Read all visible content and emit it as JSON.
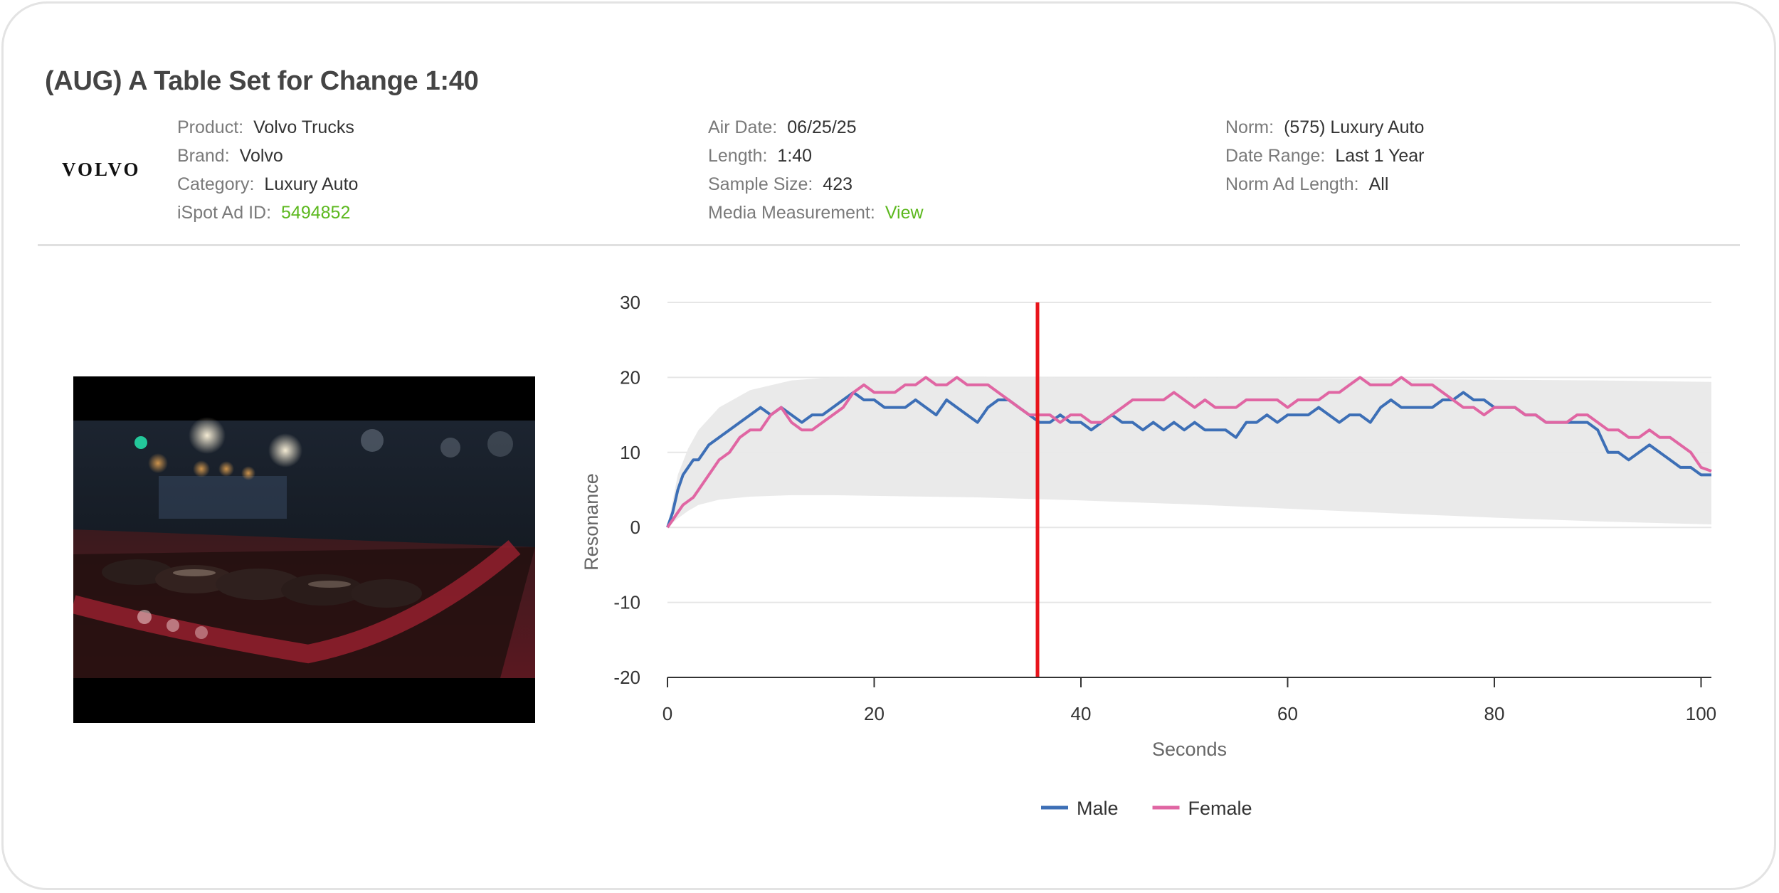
{
  "ad": {
    "title": "(AUG) A Table Set for Change 1:40",
    "brand_logo_text": "VOLVO"
  },
  "details": {
    "left": [
      {
        "label": "Product:",
        "value": "Volvo Trucks"
      },
      {
        "label": "Brand:",
        "value": "Volvo"
      },
      {
        "label": "Category:",
        "value": "Luxury Auto"
      },
      {
        "label": "iSpot Ad ID:",
        "value": "5494852",
        "link": true
      }
    ],
    "middle": [
      {
        "label": "Air Date:",
        "value": "06/25/25"
      },
      {
        "label": "Length:",
        "value": "1:40"
      },
      {
        "label": "Sample Size:",
        "value": "423"
      },
      {
        "label": "Media Measurement:",
        "value": "View",
        "link": true
      }
    ],
    "right": [
      {
        "label": "Norm:",
        "value": "(575) Luxury Auto"
      },
      {
        "label": "Date Range:",
        "value": "Last 1 Year"
      },
      {
        "label": "Norm Ad Length:",
        "value": "All"
      }
    ]
  },
  "colors": {
    "male": "#3d6fb6",
    "female": "#e066a3",
    "marker": "#e8141b",
    "norm_band": "#e9e9e9",
    "link": "#5cb81e"
  },
  "video": {
    "description_icon": "video-thumbnail"
  },
  "chart_data": {
    "type": "line",
    "title": "",
    "xlabel": "Seconds",
    "ylabel": "Resonance",
    "xlim": [
      0,
      101
    ],
    "ylim": [
      -20,
      30
    ],
    "x_ticks": [
      0,
      20,
      40,
      60,
      80,
      100
    ],
    "y_ticks": [
      -20,
      -10,
      0,
      10,
      20,
      30
    ],
    "grid": true,
    "legend_position": "bottom-center",
    "current_time_marker": 35.8,
    "norm_band": {
      "x": [
        0,
        1,
        2,
        3,
        5,
        8,
        12,
        16,
        20,
        30,
        40,
        50,
        60,
        70,
        80,
        90,
        101
      ],
      "upper": [
        0,
        7,
        10.5,
        13,
        16,
        18.3,
        19.6,
        20,
        20.1,
        20.1,
        20,
        20,
        19.9,
        19.8,
        19.7,
        19.6,
        19.4
      ],
      "lower": [
        0,
        1.2,
        2.2,
        3,
        3.7,
        4.1,
        4.3,
        4.3,
        4.2,
        4,
        3.6,
        3.1,
        2.5,
        1.9,
        1.3,
        0.8,
        0.4
      ]
    },
    "series": [
      {
        "name": "Male",
        "x": [
          0,
          0.5,
          1,
          1.5,
          2,
          2.5,
          3,
          4,
          5,
          6,
          7,
          8,
          9,
          10,
          11,
          12,
          13,
          14,
          15,
          16,
          17,
          18,
          19,
          20,
          21,
          22,
          23,
          24,
          25,
          26,
          27,
          28,
          29,
          30,
          31,
          32,
          33,
          34,
          35,
          36,
          37,
          38,
          39,
          40,
          41,
          42,
          43,
          44,
          45,
          46,
          47,
          48,
          49,
          50,
          51,
          52,
          53,
          54,
          55,
          56,
          57,
          58,
          59,
          60,
          61,
          62,
          63,
          64,
          65,
          66,
          67,
          68,
          69,
          70,
          71,
          72,
          73,
          74,
          75,
          76,
          77,
          78,
          79,
          80,
          81,
          82,
          83,
          84,
          85,
          86,
          87,
          88,
          89,
          90,
          91,
          92,
          93,
          94,
          95,
          96,
          97,
          98,
          99,
          100,
          101
        ],
        "values": [
          0,
          2,
          5,
          7,
          8,
          9,
          9,
          11,
          12,
          13,
          14,
          15,
          16,
          15,
          16,
          15,
          14,
          15,
          15,
          16,
          17,
          18,
          17,
          17,
          16,
          16,
          16,
          17,
          16,
          15,
          17,
          16,
          15,
          14,
          16,
          17,
          17,
          16,
          15,
          14,
          14,
          15,
          14,
          14,
          13,
          14,
          15,
          14,
          14,
          13,
          14,
          13,
          14,
          13,
          14,
          13,
          13,
          13,
          12,
          14,
          14,
          15,
          14,
          15,
          15,
          15,
          16,
          15,
          14,
          15,
          15,
          14,
          16,
          17,
          16,
          16,
          16,
          16,
          17,
          17,
          18,
          17,
          17,
          16,
          16,
          16,
          15,
          15,
          14,
          14,
          14,
          14,
          14,
          13,
          10,
          10,
          9,
          10,
          11,
          10,
          9,
          8,
          8,
          7,
          7
        ]
      },
      {
        "name": "Female",
        "x": [
          0,
          0.5,
          1,
          1.5,
          2,
          2.5,
          3,
          4,
          5,
          6,
          7,
          8,
          9,
          10,
          11,
          12,
          13,
          14,
          15,
          16,
          17,
          18,
          19,
          20,
          21,
          22,
          23,
          24,
          25,
          26,
          27,
          28,
          29,
          30,
          31,
          32,
          33,
          34,
          35,
          36,
          37,
          38,
          39,
          40,
          41,
          42,
          43,
          44,
          45,
          46,
          47,
          48,
          49,
          50,
          51,
          52,
          53,
          54,
          55,
          56,
          57,
          58,
          59,
          60,
          61,
          62,
          63,
          64,
          65,
          66,
          67,
          68,
          69,
          70,
          71,
          72,
          73,
          74,
          75,
          76,
          77,
          78,
          79,
          80,
          81,
          82,
          83,
          84,
          85,
          86,
          87,
          88,
          89,
          90,
          91,
          92,
          93,
          94,
          95,
          96,
          97,
          98,
          99,
          100,
          101
        ],
        "values": [
          0,
          1,
          2,
          3,
          3.5,
          4,
          5,
          7,
          9,
          10,
          12,
          13,
          13,
          15,
          16,
          14,
          13,
          13,
          14,
          15,
          16,
          18,
          19,
          18,
          18,
          18,
          19,
          19,
          20,
          19,
          19,
          20,
          19,
          19,
          19,
          18,
          17,
          16,
          15,
          15,
          15,
          14,
          15,
          15,
          14,
          14,
          15,
          16,
          17,
          17,
          17,
          17,
          18,
          17,
          16,
          17,
          16,
          16,
          16,
          17,
          17,
          17,
          17,
          16,
          17,
          17,
          17,
          18,
          18,
          19,
          20,
          19,
          19,
          19,
          20,
          19,
          19,
          19,
          18,
          17,
          16,
          16,
          15,
          16,
          16,
          16,
          15,
          15,
          14,
          14,
          14,
          15,
          15,
          14,
          13,
          13,
          12,
          12,
          13,
          12,
          12,
          11,
          10,
          8,
          7.5
        ]
      }
    ]
  }
}
